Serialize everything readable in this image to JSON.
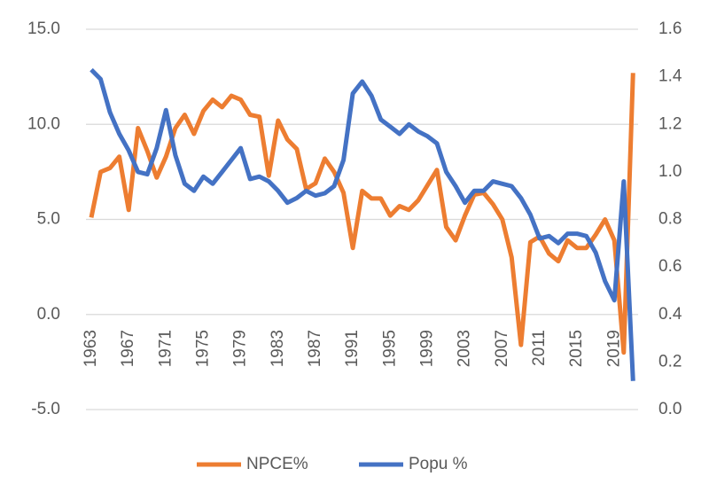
{
  "chart_data": {
    "type": "line",
    "categories": [
      "1963",
      null,
      null,
      null,
      "1967",
      null,
      null,
      null,
      "1971",
      null,
      null,
      null,
      "1975",
      null,
      null,
      null,
      "1979",
      null,
      null,
      null,
      "1983",
      null,
      null,
      null,
      "1987",
      null,
      null,
      null,
      "1991",
      null,
      null,
      null,
      "1995",
      null,
      null,
      null,
      "1999",
      null,
      null,
      null,
      "2003",
      null,
      null,
      null,
      "2007",
      null,
      null,
      null,
      "2011",
      null,
      null,
      null,
      "2015",
      null,
      null,
      null,
      "2019",
      null,
      null
    ],
    "series": [
      {
        "name": "NPCE%",
        "color": "#ed7d31",
        "values": [
          5.1,
          7.5,
          7.7,
          8.3,
          5.5,
          9.8,
          8.6,
          7.2,
          8.3,
          9.8,
          10.5,
          9.5,
          10.7,
          11.3,
          10.9,
          11.5,
          11.3,
          10.5,
          10.4,
          7.3,
          10.2,
          9.2,
          8.7,
          6.6,
          6.9,
          8.2,
          7.5,
          6.4,
          3.5,
          6.5,
          6.1,
          6.1,
          5.2,
          5.7,
          5.5,
          6.0,
          6.8,
          7.6,
          4.6,
          3.9,
          5.2,
          6.3,
          6.4,
          5.8,
          5.0,
          3.0,
          -1.6,
          3.8,
          4.1,
          3.2,
          2.8,
          3.9,
          3.5,
          3.5,
          4.2,
          5.0,
          3.9,
          -2.0,
          12.7
        ]
      },
      {
        "name": "Popu %",
        "color": "#4472c4",
        "axis": "y2",
        "values": [
          1.43,
          1.39,
          1.25,
          1.16,
          1.09,
          1.0,
          0.99,
          1.1,
          1.26,
          1.07,
          0.95,
          0.92,
          0.98,
          0.95,
          1.0,
          1.05,
          1.1,
          0.97,
          0.98,
          0.96,
          0.92,
          0.87,
          0.89,
          0.92,
          0.9,
          0.91,
          0.94,
          1.05,
          1.33,
          1.38,
          1.32,
          1.22,
          1.19,
          1.16,
          1.2,
          1.17,
          1.15,
          1.12,
          1.0,
          0.94,
          0.87,
          0.92,
          0.92,
          0.96,
          0.95,
          0.94,
          0.89,
          0.82,
          0.72,
          0.73,
          0.7,
          0.74,
          0.74,
          0.73,
          0.66,
          0.54,
          0.46,
          0.96,
          0.12
        ]
      }
    ],
    "ylim": [
      -5,
      15
    ],
    "yticks": [
      {
        "value": -5,
        "label": "-5.0"
      },
      {
        "value": 0,
        "label": "0.0"
      },
      {
        "value": 5,
        "label": "5.0"
      },
      {
        "value": 10,
        "label": "10.0"
      },
      {
        "value": 15,
        "label": "15.0"
      }
    ],
    "y2lim": [
      0,
      1.6
    ],
    "y2ticks": [
      {
        "value": 0,
        "label": "0.0"
      },
      0.2,
      0.4,
      0.6,
      0.8,
      {
        "value": 1,
        "label": "1.0"
      },
      1.2,
      1.4,
      1.6
    ],
    "grid": true,
    "legend": "bottom"
  }
}
